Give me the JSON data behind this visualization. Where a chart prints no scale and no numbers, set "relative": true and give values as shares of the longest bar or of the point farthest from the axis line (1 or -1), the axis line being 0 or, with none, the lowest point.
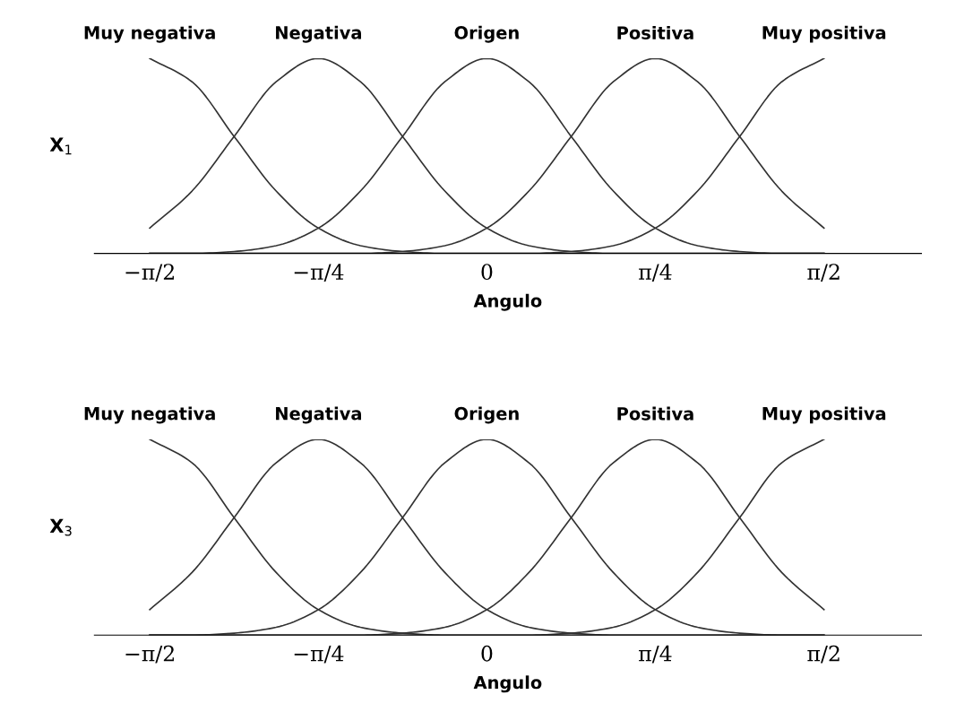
{
  "chart_data": [
    {
      "type": "line",
      "relative": true,
      "ylabel": "X$_{1}$",
      "xlabel": "Angulo",
      "legend": false,
      "grid": false,
      "line_style": "solid",
      "marker": "none",
      "x": [
        -1.571,
        -1.374,
        -1.178,
        -0.982,
        -0.785,
        -0.589,
        -0.393,
        -0.196,
        0,
        0.196,
        0.393,
        0.589,
        0.785,
        0.982,
        1.178,
        1.374,
        1.571
      ],
      "xlim": [
        -1.829,
        2.025
      ],
      "xticks": [
        {
          "value": -1.571,
          "label": "−π/2"
        },
        {
          "value": -0.785,
          "label": "−π/4"
        },
        {
          "value": 0,
          "label": "0"
        },
        {
          "value": 0.785,
          "label": "π/4"
        },
        {
          "value": 1.571,
          "label": "π/2"
        }
      ],
      "series": [
        {
          "name": "Muy negativa",
          "color": "#333333",
          "values": [
            1,
            0.88,
            0.6,
            0.32,
            0.13,
            0.04,
            0.01,
            0,
            0,
            0,
            0,
            0,
            0,
            0,
            0,
            0,
            0
          ]
        },
        {
          "name": "Negativa",
          "color": "#333333",
          "values": [
            0.13,
            0.32,
            0.6,
            0.88,
            1,
            0.88,
            0.6,
            0.32,
            0.13,
            0.04,
            0.01,
            0,
            0,
            0,
            0,
            0,
            0
          ]
        },
        {
          "name": "Origen",
          "color": "#333333",
          "values": [
            0,
            0,
            0.01,
            0.04,
            0.13,
            0.32,
            0.6,
            0.88,
            1,
            0.88,
            0.6,
            0.32,
            0.13,
            0.04,
            0.01,
            0,
            0
          ]
        },
        {
          "name": "Positiva",
          "color": "#333333",
          "values": [
            0,
            0,
            0,
            0,
            0,
            0,
            0.01,
            0.04,
            0.13,
            0.32,
            0.6,
            0.88,
            1,
            0.88,
            0.6,
            0.32,
            0.13
          ]
        },
        {
          "name": "Muy positiva",
          "color": "#333333",
          "values": [
            0,
            0,
            0,
            0,
            0,
            0,
            0,
            0,
            0,
            0,
            0.01,
            0.04,
            0.13,
            0.32,
            0.6,
            0.88,
            1
          ]
        }
      ]
    },
    {
      "type": "line",
      "relative": true,
      "ylabel": "X$_{3}$",
      "xlabel": "Angulo",
      "legend": false,
      "grid": false,
      "line_style": "solid",
      "marker": "none",
      "x": [
        -1.571,
        -1.374,
        -1.178,
        -0.982,
        -0.785,
        -0.589,
        -0.393,
        -0.196,
        0,
        0.196,
        0.393,
        0.589,
        0.785,
        0.982,
        1.178,
        1.374,
        1.571
      ],
      "xlim": [
        -1.829,
        2.025
      ],
      "xticks": [
        {
          "value": -1.571,
          "label": "−π/2"
        },
        {
          "value": -0.785,
          "label": "−π/4"
        },
        {
          "value": 0,
          "label": "0"
        },
        {
          "value": 0.785,
          "label": "π/4"
        },
        {
          "value": 1.571,
          "label": "π/2"
        }
      ],
      "series": [
        {
          "name": "Muy negativa",
          "color": "#333333",
          "values": [
            1,
            0.88,
            0.6,
            0.32,
            0.13,
            0.04,
            0.01,
            0,
            0,
            0,
            0,
            0,
            0,
            0,
            0,
            0,
            0
          ]
        },
        {
          "name": "Negativa",
          "color": "#333333",
          "values": [
            0.13,
            0.32,
            0.6,
            0.88,
            1,
            0.88,
            0.6,
            0.32,
            0.13,
            0.04,
            0.01,
            0,
            0,
            0,
            0,
            0,
            0
          ]
        },
        {
          "name": "Origen",
          "color": "#333333",
          "values": [
            0,
            0,
            0.01,
            0.04,
            0.13,
            0.32,
            0.6,
            0.88,
            1,
            0.88,
            0.6,
            0.32,
            0.13,
            0.04,
            0.01,
            0,
            0
          ]
        },
        {
          "name": "Positiva",
          "color": "#333333",
          "values": [
            0,
            0,
            0,
            0,
            0,
            0,
            0.01,
            0.04,
            0.13,
            0.32,
            0.6,
            0.88,
            1,
            0.88,
            0.6,
            0.32,
            0.13
          ]
        },
        {
          "name": "Muy positiva",
          "color": "#333333",
          "values": [
            0,
            0,
            0,
            0,
            0,
            0,
            0,
            0,
            0,
            0,
            0.01,
            0.04,
            0.13,
            0.32,
            0.6,
            0.88,
            1
          ]
        }
      ]
    }
  ]
}
